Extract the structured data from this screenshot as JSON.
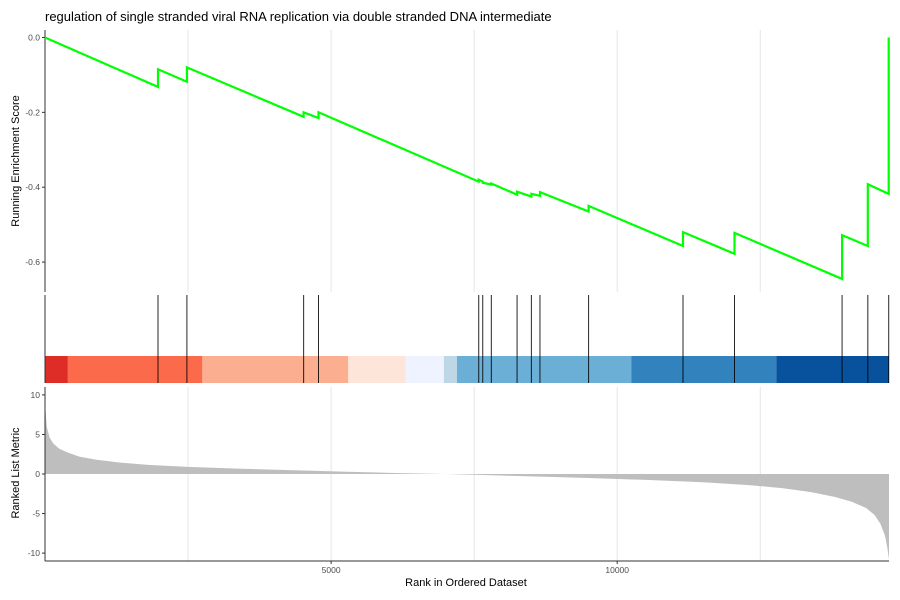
{
  "chart_data": [
    {
      "type": "line",
      "panel": "running-enrichment-score",
      "title": "regulation of single stranded viral RNA replication via double stranded DNA intermediate",
      "ylabel": "Running Enrichment Score",
      "xlim": [
        0,
        14750
      ],
      "ylim": [
        -0.68,
        0.02
      ],
      "y_ticks": [
        "0.0",
        "-0.2",
        "-0.4",
        "-0.6"
      ],
      "y_tick_values": [
        0.0,
        -0.2,
        -0.4,
        -0.6
      ],
      "x_gridlines": [
        2500,
        5000,
        7500,
        10000,
        12500
      ],
      "color": "#00FF00",
      "grid": true,
      "series": [
        {
          "x": [
            0,
            1975,
            1975,
            2480,
            2480,
            4520,
            4520,
            4780,
            4780,
            7580,
            7580,
            7650,
            7650,
            7800,
            7800,
            8250,
            8250,
            8500,
            8500,
            8650,
            8650,
            9500,
            9500,
            11150,
            11150,
            12050,
            12050,
            13930,
            13930,
            14380,
            14380,
            14745,
            14745
          ],
          "y": [
            0.0,
            -0.132,
            -0.085,
            -0.118,
            -0.08,
            -0.212,
            -0.2,
            -0.215,
            -0.2,
            -0.385,
            -0.38,
            -0.385,
            -0.388,
            -0.393,
            -0.39,
            -0.42,
            -0.412,
            -0.425,
            -0.418,
            -0.423,
            -0.413,
            -0.465,
            -0.45,
            -0.557,
            -0.52,
            -0.578,
            -0.522,
            -0.645,
            -0.528,
            -0.557,
            -0.392,
            -0.418,
            0.0
          ]
        }
      ]
    },
    {
      "type": "heatmap",
      "panel": "gene-set-hits",
      "hit_positions": [
        1975,
        2480,
        4520,
        4780,
        7580,
        7650,
        7800,
        8250,
        8500,
        8650,
        9500,
        11150,
        12050,
        13930,
        14380,
        14745
      ],
      "color_bins": [
        {
          "start": 0,
          "end": 400,
          "color": "#DE2D26"
        },
        {
          "start": 400,
          "end": 2750,
          "color": "#FB6A4A"
        },
        {
          "start": 2750,
          "end": 5300,
          "color": "#FCAE91"
        },
        {
          "start": 5300,
          "end": 6300,
          "color": "#FEE5D9"
        },
        {
          "start": 6300,
          "end": 6970,
          "color": "#EFF3FF"
        },
        {
          "start": 6970,
          "end": 7200,
          "color": "#BDD7E7"
        },
        {
          "start": 7200,
          "end": 10250,
          "color": "#6BAED6"
        },
        {
          "start": 10250,
          "end": 12780,
          "color": "#3182BD"
        },
        {
          "start": 12780,
          "end": 14750,
          "color": "#08519C"
        }
      ]
    },
    {
      "type": "area",
      "panel": "ranked-list-metric",
      "xlabel": "Rank in Ordered Dataset",
      "ylabel": "Ranked List Metric",
      "xlim": [
        0,
        14750
      ],
      "ylim": [
        -11,
        11
      ],
      "x_ticks": [
        "5000",
        "10000"
      ],
      "x_tick_values": [
        5000,
        10000
      ],
      "y_ticks": [
        "10",
        "5",
        "0",
        "-5",
        "-10"
      ],
      "y_tick_values": [
        10,
        5,
        0,
        -5,
        -10
      ],
      "fill": "#BEBEBE",
      "series": [
        {
          "x": [
            0,
            30,
            80,
            150,
            250,
            400,
            600,
            900,
            1300,
            1800,
            2500,
            3300,
            4200,
            5200,
            6200,
            7000,
            7500,
            8500,
            9500,
            10500,
            11500,
            12300,
            12900,
            13400,
            13800,
            14100,
            14350,
            14500,
            14600,
            14680,
            14720,
            14750
          ],
          "y": [
            9.0,
            6.0,
            4.6,
            3.8,
            3.2,
            2.7,
            2.2,
            1.8,
            1.45,
            1.15,
            0.9,
            0.7,
            0.5,
            0.3,
            0.12,
            0.0,
            -0.1,
            -0.3,
            -0.5,
            -0.75,
            -1.05,
            -1.4,
            -1.8,
            -2.3,
            -2.9,
            -3.5,
            -4.3,
            -5.2,
            -6.3,
            -7.8,
            -9.3,
            -10.8
          ]
        }
      ]
    }
  ]
}
